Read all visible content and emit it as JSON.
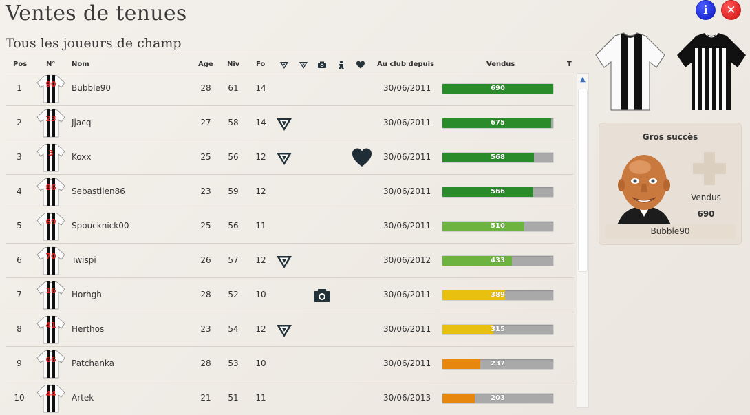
{
  "page": {
    "title": "Ventes de tenues",
    "subtitle": "Tous les joueurs de champ"
  },
  "top_buttons": {
    "info": "i",
    "close": "✕"
  },
  "table": {
    "headers": {
      "pos": "Pos",
      "num": "N°",
      "name": "Nom",
      "age": "Age",
      "niv": "Niv",
      "fo": "Fo",
      "icon_columns": [
        "badge-icon",
        "badge-alt-icon",
        "camera-icon",
        "figure-icon",
        "heart-icon"
      ],
      "club_since": "Au club depuis",
      "sold": "Vendus",
      "t": "T"
    },
    "max_sold": 690,
    "rows": [
      {
        "pos": "1",
        "num": "90",
        "name": "Bubble90",
        "age": "28",
        "niv": "61",
        "fo": "14",
        "badge": false,
        "photo": false,
        "heart": false,
        "date": "30/06/2011",
        "sold": 690,
        "sold_label": "690",
        "color": "#2a8b2a"
      },
      {
        "pos": "2",
        "num": "23",
        "name": "Jjacq",
        "age": "27",
        "niv": "58",
        "fo": "14",
        "badge": true,
        "photo": false,
        "heart": false,
        "date": "30/06/2011",
        "sold": 675,
        "sold_label": "675",
        "color": "#2a8b2a"
      },
      {
        "pos": "3",
        "num": "3",
        "name": "Koxx",
        "age": "25",
        "niv": "56",
        "fo": "12",
        "badge": true,
        "photo": false,
        "heart": true,
        "date": "30/06/2011",
        "sold": 568,
        "sold_label": "568",
        "color": "#2a8b2a"
      },
      {
        "pos": "4",
        "num": "86",
        "name": "Sebastiien86",
        "age": "23",
        "niv": "59",
        "fo": "12",
        "badge": false,
        "photo": false,
        "heart": false,
        "date": "30/06/2011",
        "sold": 566,
        "sold_label": "566",
        "color": "#2a8b2a"
      },
      {
        "pos": "5",
        "num": "69",
        "name": "Spoucknick00",
        "age": "25",
        "niv": "56",
        "fo": "11",
        "badge": false,
        "photo": false,
        "heart": false,
        "date": "30/06/2011",
        "sold": 510,
        "sold_label": "510",
        "color": "#6db33f"
      },
      {
        "pos": "6",
        "num": "70",
        "name": "Twispi",
        "age": "26",
        "niv": "57",
        "fo": "12",
        "badge": true,
        "photo": false,
        "heart": false,
        "date": "30/06/2012",
        "sold": 433,
        "sold_label": "433",
        "color": "#6db33f"
      },
      {
        "pos": "7",
        "num": "16",
        "name": "Horhgh",
        "age": "28",
        "niv": "52",
        "fo": "10",
        "badge": false,
        "photo": true,
        "heart": false,
        "date": "30/06/2011",
        "sold": 389,
        "sold_label": "389",
        "color": "#e8c010"
      },
      {
        "pos": "8",
        "num": "41",
        "name": "Herthos",
        "age": "23",
        "niv": "54",
        "fo": "12",
        "badge": true,
        "photo": false,
        "heart": false,
        "date": "30/06/2011",
        "sold": 315,
        "sold_label": "315",
        "color": "#e8c010"
      },
      {
        "pos": "9",
        "num": "66",
        "name": "Patchanka",
        "age": "28",
        "niv": "53",
        "fo": "10",
        "badge": false,
        "photo": false,
        "heart": false,
        "date": "30/06/2011",
        "sold": 237,
        "sold_label": "237",
        "color": "#e8870e"
      },
      {
        "pos": "10",
        "num": "44",
        "name": "Artek",
        "age": "21",
        "niv": "51",
        "fo": "11",
        "badge": false,
        "photo": false,
        "heart": false,
        "date": "30/06/2013",
        "sold": 203,
        "sold_label": "203",
        "color": "#e8870e"
      }
    ]
  },
  "kits": {
    "home": "home-kit-shirt",
    "away": "away-kit-shirt"
  },
  "best_seller": {
    "title": "Gros succès",
    "label": "Vendus",
    "value": "690",
    "player": "Bubble90"
  },
  "colors": {
    "badge": "#233238",
    "heart": "#1f2e36",
    "shirt_number": "#e52222"
  }
}
